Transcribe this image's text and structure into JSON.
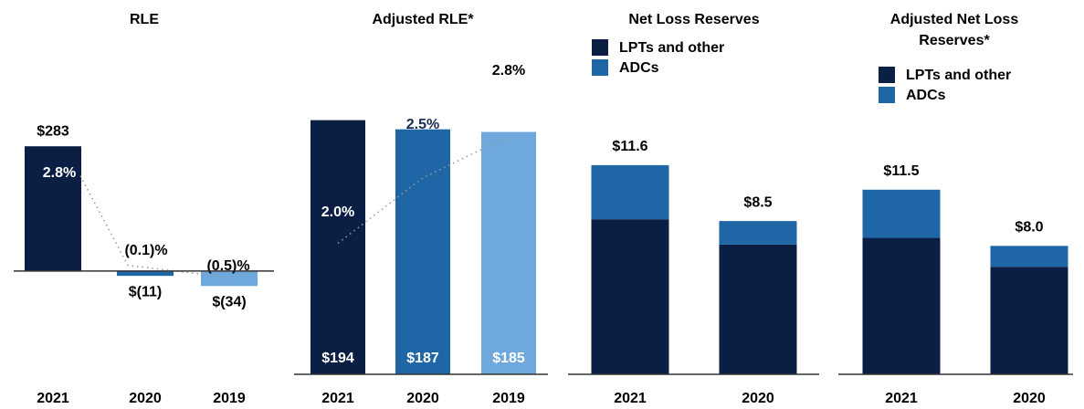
{
  "chart_data": [
    {
      "type": "bar",
      "title": "RLE",
      "categories": [
        "2021",
        "2020",
        "2019"
      ],
      "values": [
        283,
        -11,
        -34
      ],
      "value_labels": [
        "$283",
        "$(11)",
        "$(34)"
      ],
      "colors": [
        "#0b1f45",
        "#1f66a6",
        "#6fa8dc"
      ],
      "ylim": [
        -50,
        300
      ],
      "y2_values": [
        2.8,
        -0.1,
        -0.5
      ],
      "y2_value_labels": [
        "2.8%",
        "(0.1)%",
        "(0.5)%"
      ],
      "y2lim": [
        -1,
        4
      ]
    },
    {
      "type": "bar",
      "title": "Adjusted RLE*",
      "categories": [
        "2021",
        "2020",
        "2019"
      ],
      "values": [
        194,
        187,
        185
      ],
      "value_labels": [
        "$194",
        "$187",
        "$185"
      ],
      "colors": [
        "#0b1f45",
        "#1f66a6",
        "#6fa8dc"
      ],
      "ylim": [
        0,
        200
      ],
      "y2_values": [
        2.0,
        2.5,
        2.8
      ],
      "y2_value_labels": [
        "2.0%",
        "2.5%",
        "2.8%"
      ],
      "y2lim": [
        1,
        3
      ]
    },
    {
      "type": "stacked_bar",
      "title": "Net Loss Reserves",
      "categories": [
        "2021",
        "2020"
      ],
      "series": [
        {
          "name": "LPTs and other",
          "color": "#0b1f45",
          "values": [
            8.6,
            7.2
          ]
        },
        {
          "name": "ADCs",
          "color": "#1f66a6",
          "values": [
            3.0,
            1.3
          ]
        }
      ],
      "total_labels": [
        "$11.6",
        "$8.5"
      ],
      "ylim": [
        0,
        12
      ],
      "legend": "top-left"
    },
    {
      "type": "stacked_bar",
      "title": "Adjusted Net Loss Reserves*",
      "categories": [
        "2021",
        "2020"
      ],
      "series": [
        {
          "name": "LPTs and other",
          "color": "#0b1f45",
          "values": [
            8.5,
            6.7
          ]
        },
        {
          "name": "ADCs",
          "color": "#1f66a6",
          "values": [
            3.0,
            1.3
          ]
        }
      ],
      "total_labels": [
        "$11.5",
        "$8.0"
      ],
      "ylim": [
        0,
        12
      ],
      "legend": "top-left"
    }
  ]
}
